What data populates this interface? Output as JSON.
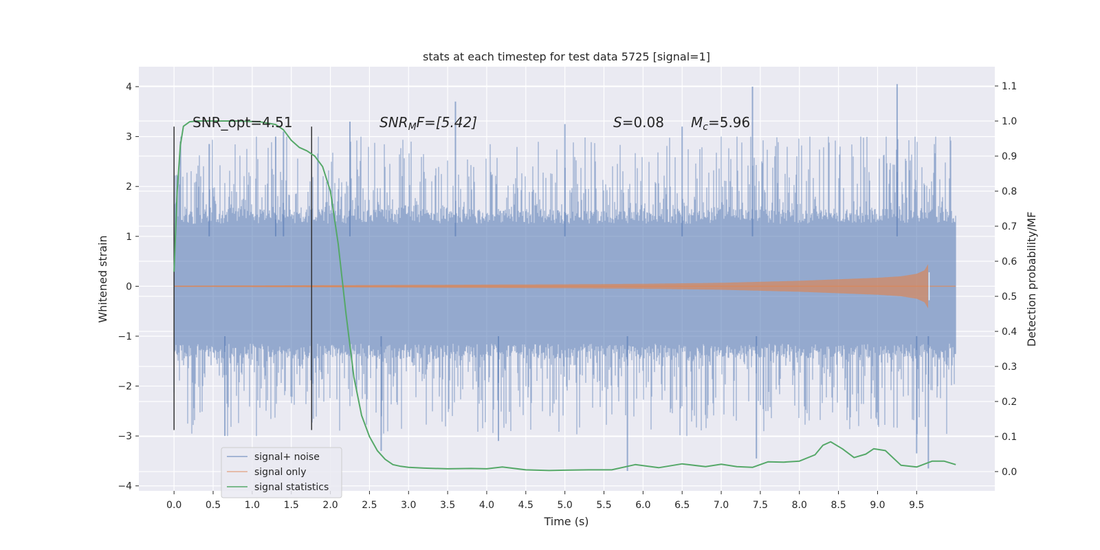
{
  "chart_data": {
    "type": "line",
    "title": "stats at each timestep for test data 5725 [signal=1]",
    "xlabel": "Time (s)",
    "ylabel": "Whitened strain",
    "y2label": "Detection probability/MF",
    "xlim": [
      -0.45,
      10.5
    ],
    "ylim": [
      -4.1,
      4.4
    ],
    "y2lim": [
      -0.055,
      1.155
    ],
    "xticks": [
      0.0,
      0.5,
      1.0,
      1.5,
      2.0,
      2.5,
      3.0,
      3.5,
      4.0,
      4.5,
      5.0,
      5.5,
      6.0,
      6.5,
      7.0,
      7.5,
      8.0,
      8.5,
      9.0,
      9.5
    ],
    "xtick_labels": [
      "0.0",
      "0.5",
      "1.0",
      "1.5",
      "2.0",
      "2.5",
      "3.0",
      "3.5",
      "4.0",
      "4.5",
      "5.0",
      "5.5",
      "6.0",
      "6.5",
      "7.0",
      "7.5",
      "8.0",
      "8.5",
      "9.0",
      "9.5"
    ],
    "yticks": [
      -4,
      -3,
      -2,
      -1,
      0,
      1,
      2,
      3,
      4
    ],
    "ytick_labels": [
      "−4",
      "−3",
      "−2",
      "−1",
      "0",
      "1",
      "2",
      "3",
      "4"
    ],
    "y2ticks": [
      0.0,
      0.1,
      0.2,
      0.3,
      0.4,
      0.5,
      0.6,
      0.7,
      0.8,
      0.9,
      1.0,
      1.1
    ],
    "y2tick_labels": [
      "0.0",
      "0.1",
      "0.2",
      "0.3",
      "0.4",
      "0.5",
      "0.6",
      "0.7",
      "0.8",
      "0.9",
      "1.0",
      "1.1"
    ],
    "grid": true,
    "legend_position": "lower-left",
    "colors": {
      "noise": "#4c72b0",
      "signal": "#dd8452",
      "stats": "#55a868",
      "markers": "#333333",
      "plot_bg": "#eaeaf2"
    },
    "series": [
      {
        "name": "signal+ noise",
        "axis": "left",
        "t_range": [
          0.0,
          10.0
        ],
        "band_typical": [
          -1.3,
          1.4
        ],
        "peaks": [
          [
            0.45,
            2.85
          ],
          [
            1.3,
            3.0
          ],
          [
            1.4,
            3.1
          ],
          [
            2.25,
            3.3
          ],
          [
            3.6,
            3.7
          ],
          [
            5.0,
            3.25
          ],
          [
            6.5,
            3.2
          ],
          [
            7.4,
            4.0
          ],
          [
            9.25,
            4.05
          ]
        ],
        "troughs": [
          [
            0.65,
            -3.0
          ],
          [
            2.65,
            -3.3
          ],
          [
            4.15,
            -3.1
          ],
          [
            5.8,
            -3.7
          ],
          [
            7.45,
            -3.45
          ],
          [
            9.5,
            -3.35
          ],
          [
            9.65,
            -3.65
          ]
        ]
      },
      {
        "name": "signal only",
        "axis": "left",
        "envelope_t": [
          0.0,
          5.0,
          6.0,
          7.0,
          8.0,
          8.5,
          9.0,
          9.3,
          9.5,
          9.6,
          9.65
        ],
        "envelope_amp": [
          0.01,
          0.04,
          0.05,
          0.07,
          0.11,
          0.14,
          0.17,
          0.2,
          0.25,
          0.32,
          0.45
        ],
        "merger_t": 9.66
      },
      {
        "name": "signal statistics",
        "axis": "right",
        "x": [
          0.0,
          0.04,
          0.08,
          0.12,
          0.2,
          0.3,
          0.5,
          0.8,
          1.1,
          1.3,
          1.4,
          1.5,
          1.6,
          1.7,
          1.8,
          1.9,
          2.0,
          2.1,
          2.2,
          2.3,
          2.4,
          2.5,
          2.6,
          2.7,
          2.8,
          2.9,
          3.0,
          3.2,
          3.5,
          3.8,
          4.0,
          4.2,
          4.5,
          4.8,
          5.0,
          5.3,
          5.6,
          5.9,
          6.2,
          6.5,
          6.8,
          7.0,
          7.2,
          7.4,
          7.6,
          7.8,
          8.0,
          8.2,
          8.3,
          8.4,
          8.55,
          8.7,
          8.85,
          8.95,
          9.1,
          9.3,
          9.5,
          9.7,
          9.85,
          10.0
        ],
        "y": [
          0.57,
          0.8,
          0.93,
          0.985,
          0.998,
          1.0,
          1.0,
          1.0,
          0.998,
          0.99,
          0.975,
          0.945,
          0.925,
          0.915,
          0.9,
          0.87,
          0.8,
          0.65,
          0.45,
          0.27,
          0.16,
          0.1,
          0.06,
          0.035,
          0.02,
          0.015,
          0.012,
          0.01,
          0.008,
          0.009,
          0.008,
          0.013,
          0.005,
          0.003,
          0.004,
          0.005,
          0.005,
          0.02,
          0.011,
          0.022,
          0.014,
          0.021,
          0.014,
          0.012,
          0.028,
          0.027,
          0.03,
          0.048,
          0.075,
          0.085,
          0.065,
          0.04,
          0.05,
          0.065,
          0.06,
          0.018,
          0.013,
          0.03,
          0.03,
          0.02
        ]
      }
    ],
    "vertical_markers": [
      0.0,
      1.76
    ],
    "annotations": {
      "snr_opt": "SNR_opt=4.51",
      "snr_mf_italic": "SNR",
      "snr_mf_sub": "M",
      "snr_mf_rest": "F=[5.42]",
      "s_italic": "S",
      "s_rest": "=0.08",
      "mc_italic": "M",
      "mc_sub": "c",
      "mc_rest": "=5.96"
    }
  }
}
